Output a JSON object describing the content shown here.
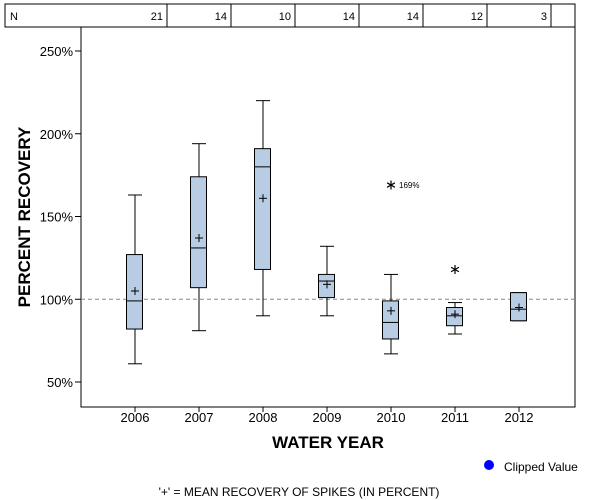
{
  "chart_data": {
    "type": "boxplot",
    "xlabel": "WATER YEAR",
    "ylabel": "PERCENT RECOVERY",
    "ylim": [
      35,
      265
    ],
    "y_ticks": [
      50,
      100,
      150,
      200,
      250
    ],
    "y_tick_labels": [
      "50%",
      "100%",
      "150%",
      "200%",
      "250%"
    ],
    "reference_line": 100,
    "n_label": "N",
    "categories": [
      "2006",
      "2007",
      "2008",
      "2009",
      "2010",
      "2011",
      "2012"
    ],
    "n_values": [
      "21",
      "14",
      "10",
      "14",
      "14",
      "12",
      "3"
    ],
    "boxes": [
      {
        "year": "2006",
        "whisker_low": 61,
        "q1": 82,
        "median": 99,
        "q3": 127,
        "whisker_high": 163,
        "mean": 105
      },
      {
        "year": "2007",
        "whisker_low": 81,
        "q1": 107,
        "median": 131,
        "q3": 174,
        "whisker_high": 194,
        "mean": 137
      },
      {
        "year": "2008",
        "whisker_low": 90,
        "q1": 118,
        "median": 180,
        "q3": 191,
        "whisker_high": 220,
        "mean": 161
      },
      {
        "year": "2009",
        "whisker_low": 90,
        "q1": 101,
        "median": 111,
        "q3": 115,
        "whisker_high": 132,
        "mean": 109
      },
      {
        "year": "2010",
        "whisker_low": 67,
        "q1": 76,
        "median": 86,
        "q3": 99,
        "whisker_high": 115,
        "mean": 93
      },
      {
        "year": "2011",
        "whisker_low": 79,
        "q1": 84,
        "median": 90,
        "q3": 95,
        "whisker_high": 98,
        "mean": 91
      },
      {
        "year": "2012",
        "whisker_low": 87,
        "q1": 87,
        "median": 94,
        "q3": 104,
        "whisker_high": 104,
        "mean": 95
      }
    ],
    "outliers": [
      {
        "year": "2010",
        "value": 169,
        "label": "169%"
      },
      {
        "year": "2011",
        "value": 118,
        "label": ""
      }
    ],
    "legend": {
      "clipped_label": "Clipped Value",
      "clipped_color": "#0000ff"
    },
    "footnote": "'+' = MEAN RECOVERY OF SPIKES (IN PERCENT)",
    "colors": {
      "box_fill": "#b8cce4",
      "reference_line": "#888888",
      "axis": "#000000"
    }
  }
}
